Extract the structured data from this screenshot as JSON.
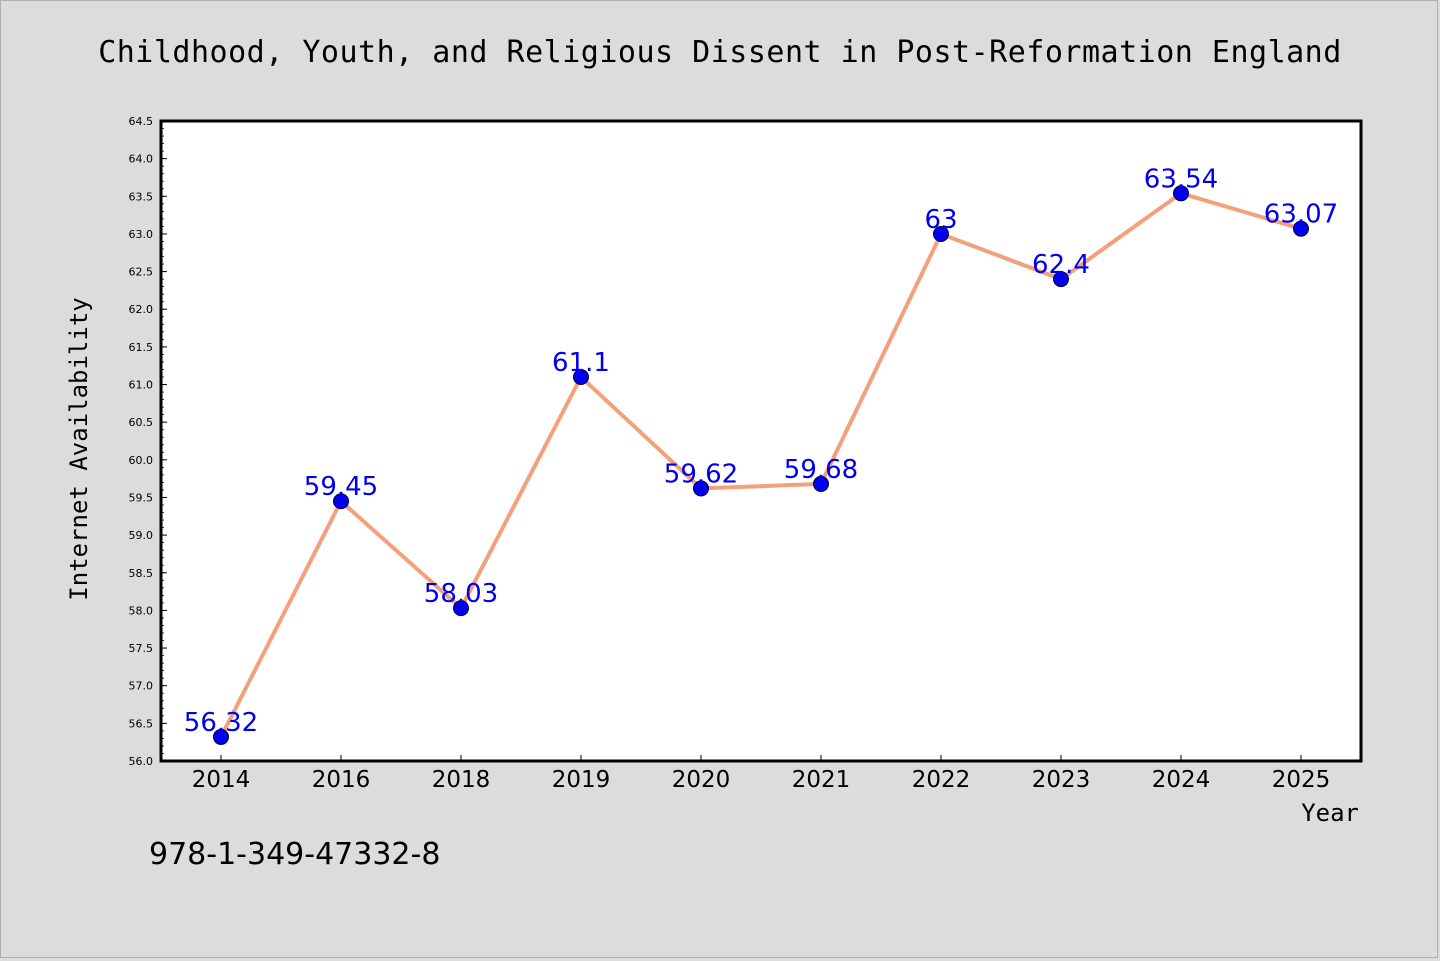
{
  "title": "Childhood, Youth, and Religious Dissent in Post-Reformation England",
  "footer_text": "978-1-349-47332-8",
  "colors": {
    "background": "#dcdcdc",
    "plot_background": "#ffffff",
    "line": "#f4a07a",
    "marker": "#0000ee",
    "data_label": "#0000ee"
  },
  "chart_data": {
    "type": "line",
    "title": "Childhood, Youth, and Religious Dissent in Post-Reformation England",
    "xlabel": "Year",
    "ylabel": "Internet Availability",
    "categories": [
      "2014",
      "2016",
      "2018",
      "2019",
      "2020",
      "2021",
      "2022",
      "2023",
      "2024",
      "2025"
    ],
    "series": [
      {
        "values": [
          56.32,
          59.45,
          58.03,
          61.1,
          59.62,
          59.68,
          63,
          62.4,
          63.54,
          63.07
        ],
        "labels": [
          "56.32",
          "59.45",
          "58.03",
          "61.1",
          "59.62",
          "59.68",
          "63",
          "62.4",
          "63.54",
          "63.07"
        ]
      }
    ],
    "ylim": [
      56.0,
      64.5
    ],
    "yticks": [
      "56.0",
      "56.5",
      "57.0",
      "57.5",
      "58.0",
      "58.5",
      "59.0",
      "59.5",
      "60.0",
      "60.5",
      "61.0",
      "61.5",
      "62.0",
      "62.5",
      "63.0",
      "63.5",
      "64.0",
      "64.5"
    ],
    "grid": false,
    "legend": "none"
  }
}
